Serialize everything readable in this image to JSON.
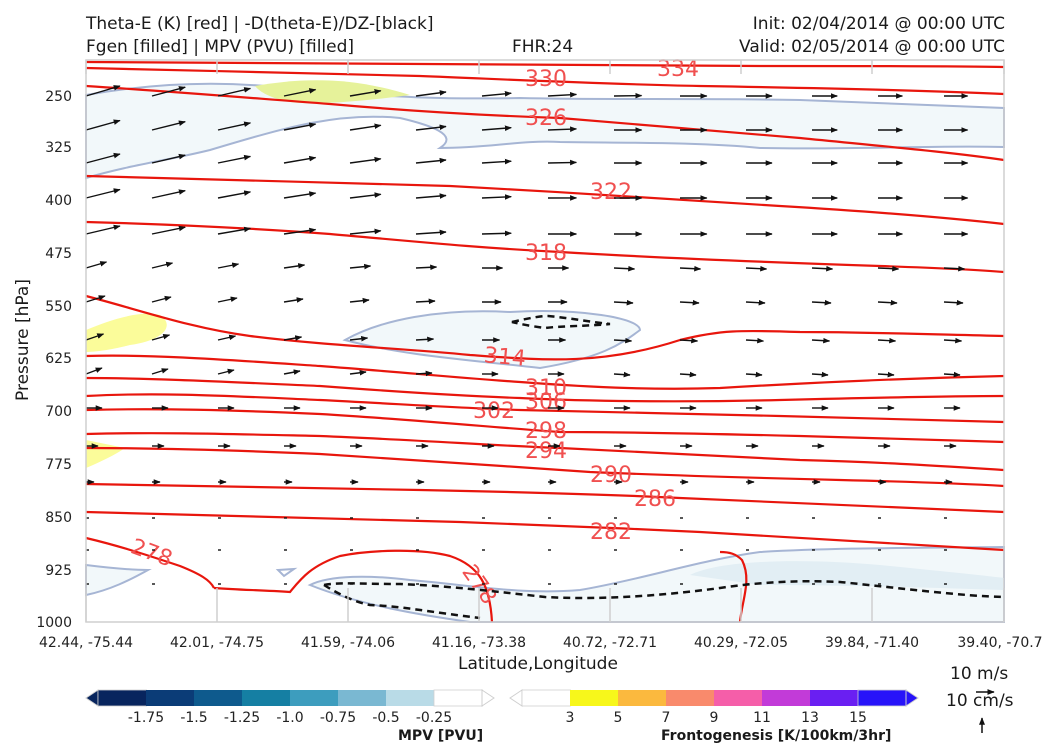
{
  "header": {
    "title_line1": "Theta-E (K) [red] | -D(theta-E)/DZ-[black]",
    "title_line2": "Fgen [filled] | MPV (PVU) [filled]",
    "fhr": "FHR:24",
    "init": "Init: 02/04/2014 @ 00:00 UTC",
    "valid": "Valid: 02/05/2014 @ 00:00 UTC"
  },
  "chart_data": {
    "type": "cross-section",
    "ylabel": "Pressure [hPa]",
    "xlabel": "Latitude,Longitude",
    "ylim": [
      1000,
      200
    ],
    "y_ticks": [
      "250",
      "325",
      "400",
      "475",
      "550",
      "625",
      "700",
      "775",
      "850",
      "925",
      "1000"
    ],
    "x_ticks": [
      "42.44, -75.44",
      "42.01, -74.75",
      "41.59, -74.06",
      "41.16, -73.38",
      "40.72, -72.71",
      "40.29, -72.05",
      "39.84, -71.40",
      "39.40, -70.7"
    ],
    "theta_e_labels": [
      "334",
      "330",
      "326",
      "322",
      "318",
      "314",
      "310",
      "306",
      "302",
      "298",
      "294",
      "290",
      "286",
      "282",
      "278",
      "278"
    ],
    "wind_key": {
      "horizontal": "10 m/s",
      "vertical": "10 cm/s"
    },
    "mpv_colorbar": {
      "title": "MPV [PVU]",
      "ticks": [
        "-1.75",
        "-1.5",
        "-1.25",
        "-1.0",
        "-0.75",
        "-0.5",
        "-0.25"
      ],
      "colors": [
        "#08255e",
        "#0b3c77",
        "#0e5a8d",
        "#157fa3",
        "#3d9dbe",
        "#7ab8d2",
        "#b9dbe7",
        "#ffffff"
      ]
    },
    "fgen_colorbar": {
      "title": "Frontogenesis [K/100km/3hr]",
      "ticks": [
        "3",
        "5",
        "7",
        "9",
        "11",
        "13",
        "15"
      ],
      "colors": [
        "#ffffff",
        "#f7f71b",
        "#fbb93e",
        "#f98a6c",
        "#f55ea9",
        "#c23bd8",
        "#6a1ff2",
        "#2713f9"
      ]
    }
  }
}
